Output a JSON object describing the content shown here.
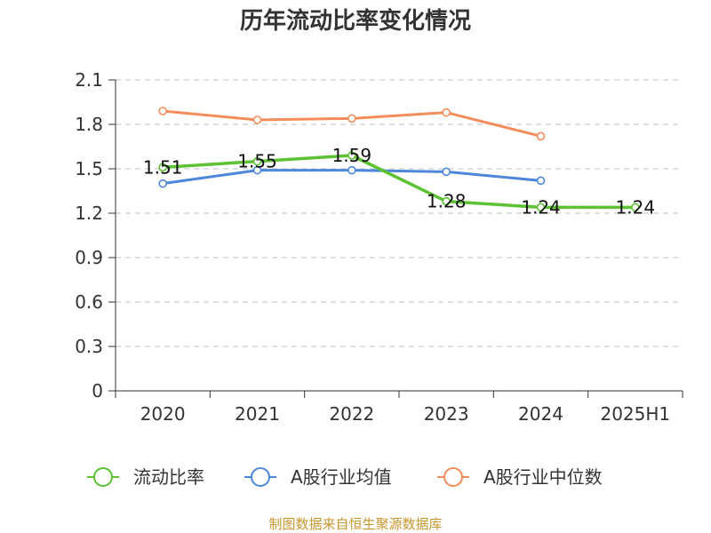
{
  "chart_data": {
    "type": "line",
    "title": "历年流动比率变化情况",
    "categories": [
      "2020",
      "2021",
      "2022",
      "2023",
      "2024",
      "2025H1"
    ],
    "y_ticks": [
      "0",
      "0.3",
      "0.6",
      "0.9",
      "1.2",
      "1.5",
      "1.8",
      "2.1"
    ],
    "ylim": [
      0,
      2.1
    ],
    "grid": true,
    "legend_position": "bottom",
    "series": [
      {
        "name": "流动比率",
        "color": "#5cc232",
        "values": [
          1.51,
          1.55,
          1.59,
          1.28,
          1.24,
          1.24
        ],
        "labels": [
          "1.51",
          "1.55",
          "1.59",
          "1.28",
          "1.24",
          "1.24"
        ]
      },
      {
        "name": "A股行业均值",
        "color": "#4d86dd",
        "values": [
          1.4,
          1.49,
          1.49,
          1.48,
          1.42,
          null
        ]
      },
      {
        "name": "A股行业中位数",
        "color": "#f58c5a",
        "values": [
          1.89,
          1.83,
          1.84,
          1.88,
          1.72,
          null
        ]
      }
    ],
    "source": "制图数据来自恒生聚源数据库"
  }
}
